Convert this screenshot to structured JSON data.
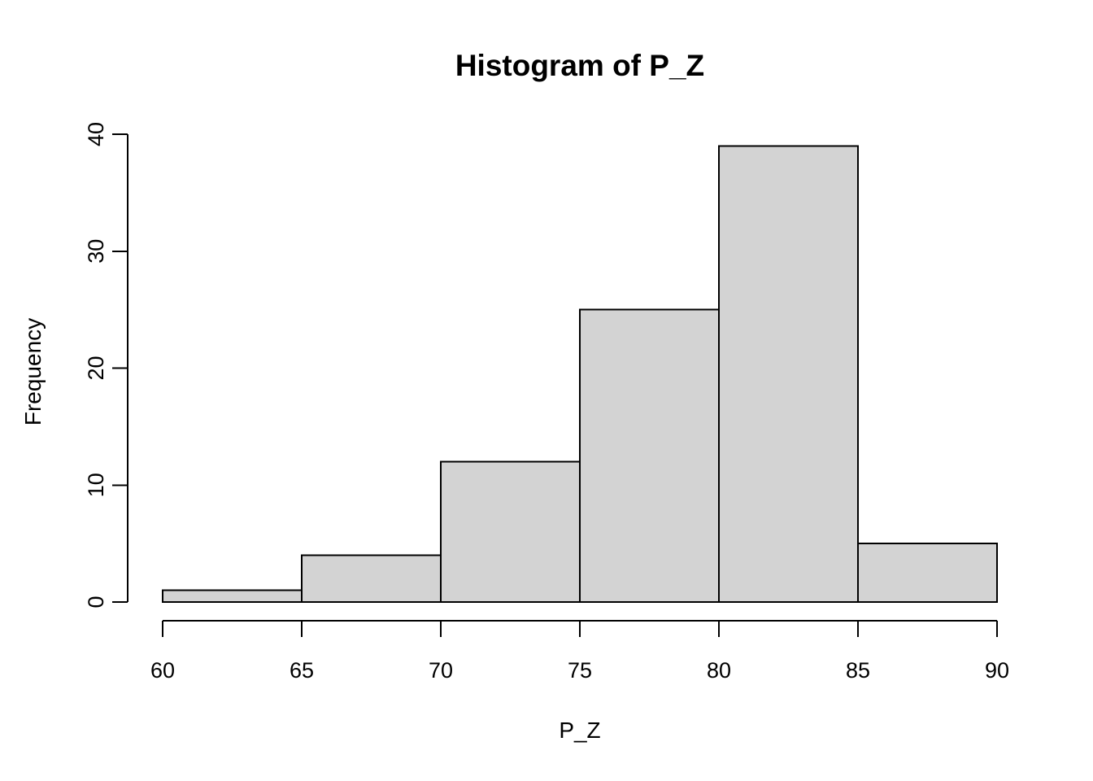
{
  "chart_data": {
    "type": "bar",
    "subtype": "histogram",
    "title": "Histogram of P_Z",
    "xlabel": "P_Z",
    "ylabel": "Frequency",
    "breaks": [
      60,
      65,
      70,
      75,
      80,
      85,
      90
    ],
    "counts": [
      1,
      4,
      12,
      25,
      39,
      5
    ],
    "xlim": [
      60,
      90
    ],
    "ylim": [
      0,
      40
    ],
    "x_ticks": [
      60,
      65,
      70,
      75,
      80,
      85,
      90
    ],
    "y_ticks": [
      0,
      10,
      20,
      30,
      40
    ],
    "grid": "off",
    "legend": "none",
    "colors": {
      "bar_fill": "#d3d3d3",
      "bar_stroke": "#000000",
      "axis": "#000000",
      "text": "#000000",
      "background": "#ffffff"
    }
  }
}
